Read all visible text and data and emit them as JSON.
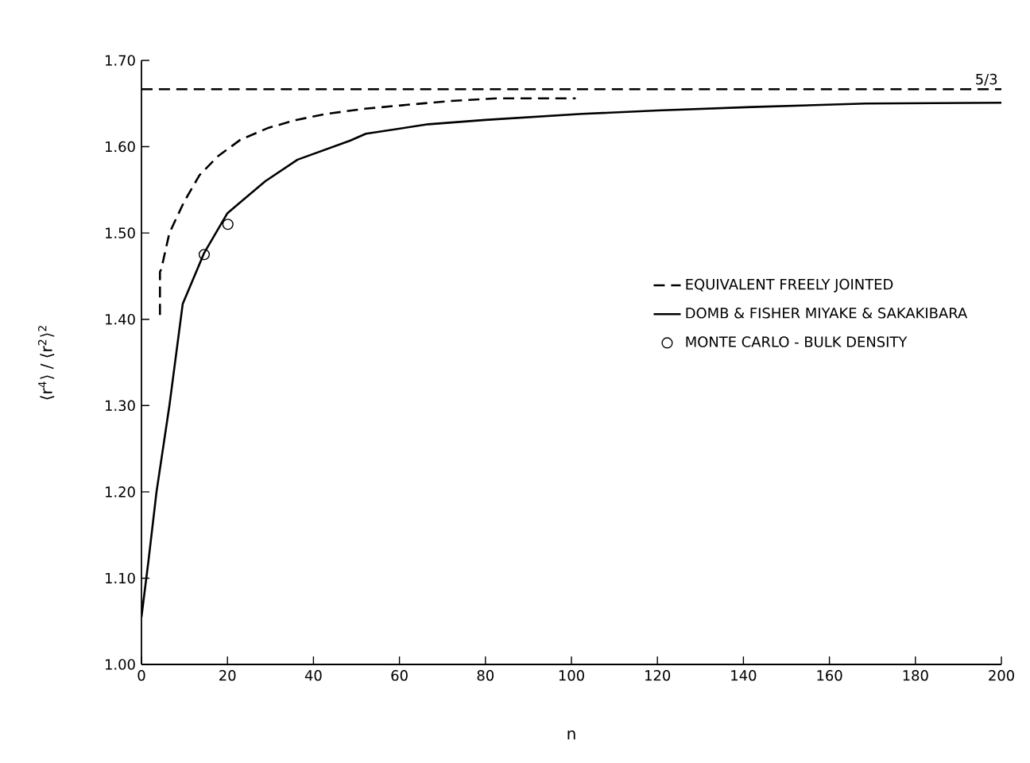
{
  "chart_data": {
    "type": "line",
    "xlabel": "n",
    "ylabel": "⟨r$^{4}$⟩ / ⟨r$^{2}$⟩$^{2}$",
    "xlim": [
      0,
      200
    ],
    "ylim": [
      1.0,
      1.7
    ],
    "xticks": [
      0,
      20,
      40,
      60,
      80,
      100,
      120,
      140,
      160,
      180,
      200
    ],
    "yticks": [
      {
        "value": 1.0,
        "label": "1.00"
      },
      {
        "value": 1.1,
        "label": "1.10"
      },
      {
        "value": 1.2,
        "label": "1.20"
      },
      {
        "value": 1.3,
        "label": "1.30"
      },
      {
        "value": 1.4,
        "label": "1.40"
      },
      {
        "value": 1.5,
        "label": "1.50"
      },
      {
        "value": 1.6,
        "label": "1.60"
      },
      {
        "value": 1.7,
        "label": "1.70"
      }
    ],
    "grid": false,
    "legend": "right",
    "ref_lines": [
      {
        "axis": "y",
        "value": 1.6666667,
        "line_style": "dashed",
        "color": "#000000"
      }
    ],
    "annotations": [
      "5/3"
    ],
    "series": [
      {
        "name": "EQUIVALENT FREELY JOINTED",
        "line_style": "dashed",
        "color": "#000000",
        "x": [
          4.3,
          4.3,
          4.6,
          6.5,
          9.9,
          13.5,
          17.8,
          23,
          29.6,
          36,
          43,
          52,
          62.8,
          72,
          82.6,
          92,
          101
        ],
        "values": [
          1.405,
          1.455,
          1.458,
          1.5,
          1.536,
          1.567,
          1.589,
          1.608,
          1.622,
          1.631,
          1.638,
          1.644,
          1.649,
          1.653,
          1.656,
          1.656,
          1.656
        ]
      },
      {
        "name": "DOMB & FISHER MIYAKE & SAKAKIBARA",
        "line_style": "solid",
        "color": "#000000",
        "x": [
          0,
          1.6,
          3.5,
          6.5,
          9.6,
          14.6,
          20,
          28.8,
          36.3,
          48.5,
          52.2,
          66.7,
          80,
          102.5,
          120,
          142,
          168.5,
          200
        ],
        "values": [
          1.055,
          1.119,
          1.2,
          1.3,
          1.418,
          1.477,
          1.523,
          1.56,
          1.585,
          1.607,
          1.615,
          1.626,
          1.631,
          1.638,
          1.642,
          1.646,
          1.65,
          1.651
        ]
      },
      {
        "name": "MONTE CARLO - BULK DENSITY",
        "type": "scatter",
        "marker": "circle",
        "color": "#000000",
        "x": [
          14.6,
          20.1
        ],
        "values": [
          1.475,
          1.51
        ]
      }
    ]
  }
}
